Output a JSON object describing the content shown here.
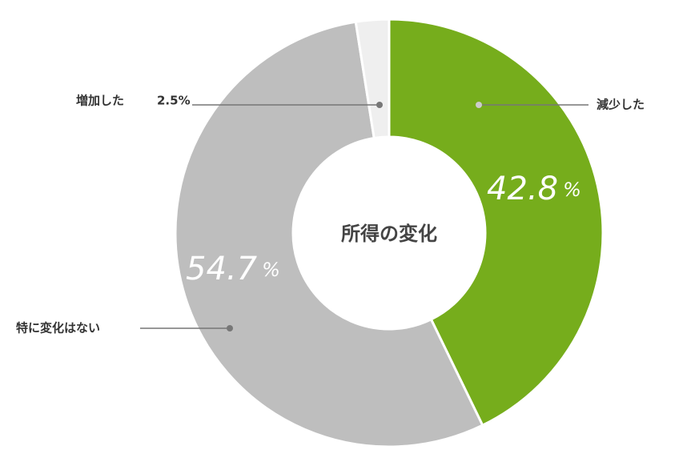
{
  "chart_data": {
    "type": "donut",
    "title": "所得の変化",
    "categories": [
      "減少した",
      "特に変化はない",
      "増加した"
    ],
    "values": [
      42.8,
      54.7,
      2.5
    ],
    "value_labels": [
      "42.8%",
      "54.7%",
      "2.5%"
    ],
    "colors": [
      "#76ad1c",
      "#bebebe",
      "#efefef"
    ]
  }
}
